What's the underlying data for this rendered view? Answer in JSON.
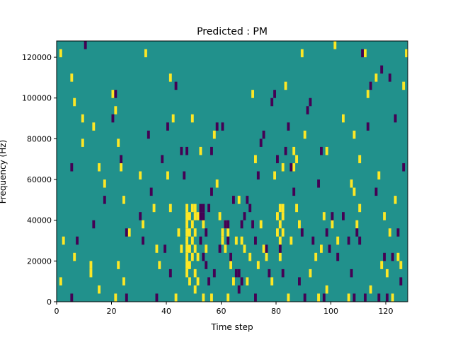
{
  "chart_data": {
    "type": "heatmap",
    "title": "Predicted : PM",
    "xlabel": "Time step",
    "ylabel": "Frequency (Hz)",
    "xlim": [
      0,
      128
    ],
    "ylim": [
      0,
      128000
    ],
    "x_ticks": [
      0,
      20,
      40,
      60,
      80,
      100,
      120
    ],
    "y_ticks": [
      0,
      20000,
      40000,
      60000,
      80000,
      100000,
      120000
    ],
    "x_tick_labels": [
      "0",
      "20",
      "40",
      "60",
      "80",
      "100",
      "120"
    ],
    "y_tick_labels": [
      "0",
      "20000",
      "40000",
      "60000",
      "80000",
      "100000",
      "120000"
    ],
    "grid": false,
    "legend": "none",
    "colormap": "viridis",
    "cell_height_hz": 4000,
    "colors": {
      "background": "#21918c",
      "high": "#fde725",
      "low": "#440154"
    },
    "cells": {
      "high": [
        [
          1,
          120000
        ],
        [
          5,
          108000
        ],
        [
          6,
          96000
        ],
        [
          9,
          88000
        ],
        [
          9,
          76000
        ],
        [
          13,
          84000
        ],
        [
          15,
          64000
        ],
        [
          17,
          56000
        ],
        [
          20,
          100000
        ],
        [
          21,
          92000
        ],
        [
          22,
          76000
        ],
        [
          23,
          64000
        ],
        [
          24,
          48000
        ],
        [
          26,
          32000
        ],
        [
          2,
          28000
        ],
        [
          1,
          8000
        ],
        [
          6,
          20000
        ],
        [
          12,
          16000
        ],
        [
          12,
          12000
        ],
        [
          15,
          4000
        ],
        [
          22,
          16000
        ],
        [
          21,
          0
        ],
        [
          24,
          8000
        ],
        [
          30,
          60000
        ],
        [
          31,
          36000
        ],
        [
          32,
          120000
        ],
        [
          35,
          44000
        ],
        [
          36,
          24000
        ],
        [
          37,
          16000
        ],
        [
          40,
          60000
        ],
        [
          41,
          44000
        ],
        [
          41,
          108000
        ],
        [
          42,
          88000
        ],
        [
          43,
          0
        ],
        [
          45,
          24000
        ],
        [
          44,
          32000
        ],
        [
          47,
          44000
        ],
        [
          47,
          40000
        ],
        [
          47,
          36000
        ],
        [
          47,
          32000
        ],
        [
          47,
          28000
        ],
        [
          47,
          24000
        ],
        [
          47,
          20000
        ],
        [
          47,
          16000
        ],
        [
          47,
          12000
        ],
        [
          48,
          40000
        ],
        [
          48,
          32000
        ],
        [
          48,
          24000
        ],
        [
          48,
          16000
        ],
        [
          48,
          8000
        ],
        [
          49,
          44000
        ],
        [
          49,
          36000
        ],
        [
          49,
          28000
        ],
        [
          49,
          20000
        ],
        [
          50,
          44000
        ],
        [
          50,
          40000
        ],
        [
          50,
          32000
        ],
        [
          50,
          24000
        ],
        [
          50,
          12000
        ],
        [
          50,
          4000
        ],
        [
          51,
          40000
        ],
        [
          51,
          20000
        ],
        [
          51,
          8000
        ],
        [
          49,
          88000
        ],
        [
          52,
          72000
        ],
        [
          53,
          36000
        ],
        [
          53,
          0
        ],
        [
          54,
          24000
        ],
        [
          56,
          0
        ],
        [
          57,
          80000
        ],
        [
          58,
          56000
        ],
        [
          59,
          40000
        ],
        [
          60,
          32000
        ],
        [
          60,
          28000
        ],
        [
          61,
          24000
        ],
        [
          61,
          36000
        ],
        [
          62,
          32000
        ],
        [
          62,
          0
        ],
        [
          63,
          16000
        ],
        [
          64,
          8000
        ],
        [
          65,
          28000
        ],
        [
          66,
          48000
        ],
        [
          67,
          28000
        ],
        [
          68,
          24000
        ],
        [
          69,
          8000
        ],
        [
          70,
          20000
        ],
        [
          71,
          100000
        ],
        [
          72,
          68000
        ],
        [
          73,
          16000
        ],
        [
          74,
          36000
        ],
        [
          75,
          24000
        ],
        [
          76,
          20000
        ],
        [
          78,
          8000
        ],
        [
          79,
          60000
        ],
        [
          80,
          40000
        ],
        [
          80,
          32000
        ],
        [
          81,
          44000
        ],
        [
          81,
          36000
        ],
        [
          81,
          28000
        ],
        [
          81,
          20000
        ],
        [
          82,
          44000
        ],
        [
          82,
          40000
        ],
        [
          82,
          32000
        ],
        [
          82,
          64000
        ],
        [
          83,
          104000
        ],
        [
          84,
          0
        ],
        [
          85,
          28000
        ],
        [
          86,
          72000
        ],
        [
          86,
          64000
        ],
        [
          87,
          68000
        ],
        [
          87,
          44000
        ],
        [
          88,
          36000
        ],
        [
          89,
          120000
        ],
        [
          90,
          80000
        ],
        [
          92,
          12000
        ],
        [
          94,
          20000
        ],
        [
          95,
          0
        ],
        [
          96,
          24000
        ],
        [
          97,
          40000
        ],
        [
          98,
          72000
        ],
        [
          98,
          4000
        ],
        [
          100,
          36000
        ],
        [
          101,
          124000
        ],
        [
          102,
          28000
        ],
        [
          104,
          88000
        ],
        [
          106,
          0
        ],
        [
          107,
          56000
        ],
        [
          108,
          52000
        ],
        [
          108,
          80000
        ],
        [
          109,
          36000
        ],
        [
          110,
          68000
        ],
        [
          110,
          44000
        ],
        [
          112,
          120000
        ],
        [
          113,
          100000
        ],
        [
          114,
          4000
        ],
        [
          116,
          108000
        ],
        [
          117,
          60000
        ],
        [
          118,
          16000
        ],
        [
          119,
          40000
        ],
        [
          120,
          12000
        ],
        [
          121,
          32000
        ],
        [
          122,
          0
        ],
        [
          123,
          48000
        ],
        [
          124,
          20000
        ],
        [
          125,
          16000
        ],
        [
          126,
          104000
        ],
        [
          127,
          120000
        ]
      ],
      "low": [
        [
          5,
          64000
        ],
        [
          5,
          0
        ],
        [
          7,
          28000
        ],
        [
          10,
          124000
        ],
        [
          13,
          36000
        ],
        [
          17,
          48000
        ],
        [
          20,
          88000
        ],
        [
          21,
          100000
        ],
        [
          23,
          68000
        ],
        [
          25,
          32000
        ],
        [
          25,
          0
        ],
        [
          30,
          40000
        ],
        [
          31,
          28000
        ],
        [
          33,
          80000
        ],
        [
          34,
          52000
        ],
        [
          36,
          0
        ],
        [
          38,
          68000
        ],
        [
          39,
          24000
        ],
        [
          40,
          84000
        ],
        [
          41,
          12000
        ],
        [
          43,
          104000
        ],
        [
          45,
          72000
        ],
        [
          46,
          60000
        ],
        [
          47,
          72000
        ],
        [
          52,
          44000
        ],
        [
          52,
          40000
        ],
        [
          53,
          44000
        ],
        [
          53,
          40000
        ],
        [
          52,
          28000
        ],
        [
          53,
          20000
        ],
        [
          54,
          32000
        ],
        [
          54,
          16000
        ],
        [
          55,
          44000
        ],
        [
          55,
          8000
        ],
        [
          56,
          72000
        ],
        [
          56,
          52000
        ],
        [
          57,
          12000
        ],
        [
          58,
          84000
        ],
        [
          59,
          24000
        ],
        [
          60,
          84000
        ],
        [
          61,
          36000
        ],
        [
          62,
          36000
        ],
        [
          62,
          28000
        ],
        [
          63,
          20000
        ],
        [
          64,
          48000
        ],
        [
          65,
          12000
        ],
        [
          66,
          12000
        ],
        [
          66,
          4000
        ],
        [
          67,
          8000
        ],
        [
          67,
          36000
        ],
        [
          68,
          40000
        ],
        [
          69,
          48000
        ],
        [
          70,
          44000
        ],
        [
          71,
          36000
        ],
        [
          72,
          28000
        ],
        [
          72,
          0
        ],
        [
          73,
          60000
        ],
        [
          74,
          76000
        ],
        [
          75,
          80000
        ],
        [
          76,
          24000
        ],
        [
          77,
          12000
        ],
        [
          78,
          96000
        ],
        [
          79,
          100000
        ],
        [
          80,
          68000
        ],
        [
          81,
          24000
        ],
        [
          82,
          12000
        ],
        [
          83,
          72000
        ],
        [
          84,
          84000
        ],
        [
          85,
          64000
        ],
        [
          86,
          52000
        ],
        [
          88,
          8000
        ],
        [
          89,
          32000
        ],
        [
          90,
          0
        ],
        [
          91,
          92000
        ],
        [
          92,
          96000
        ],
        [
          93,
          28000
        ],
        [
          95,
          56000
        ],
        [
          96,
          72000
        ],
        [
          97,
          0
        ],
        [
          98,
          32000
        ],
        [
          99,
          24000
        ],
        [
          100,
          40000
        ],
        [
          102,
          20000
        ],
        [
          104,
          40000
        ],
        [
          106,
          28000
        ],
        [
          107,
          12000
        ],
        [
          108,
          0
        ],
        [
          109,
          32000
        ],
        [
          110,
          28000
        ],
        [
          111,
          120000
        ],
        [
          112,
          0
        ],
        [
          113,
          84000
        ],
        [
          114,
          104000
        ],
        [
          116,
          52000
        ],
        [
          117,
          0
        ],
        [
          118,
          112000
        ],
        [
          119,
          20000
        ],
        [
          120,
          0
        ],
        [
          121,
          108000
        ],
        [
          122,
          20000
        ],
        [
          123,
          88000
        ],
        [
          124,
          32000
        ],
        [
          125,
          8000
        ],
        [
          126,
          64000
        ]
      ]
    }
  }
}
